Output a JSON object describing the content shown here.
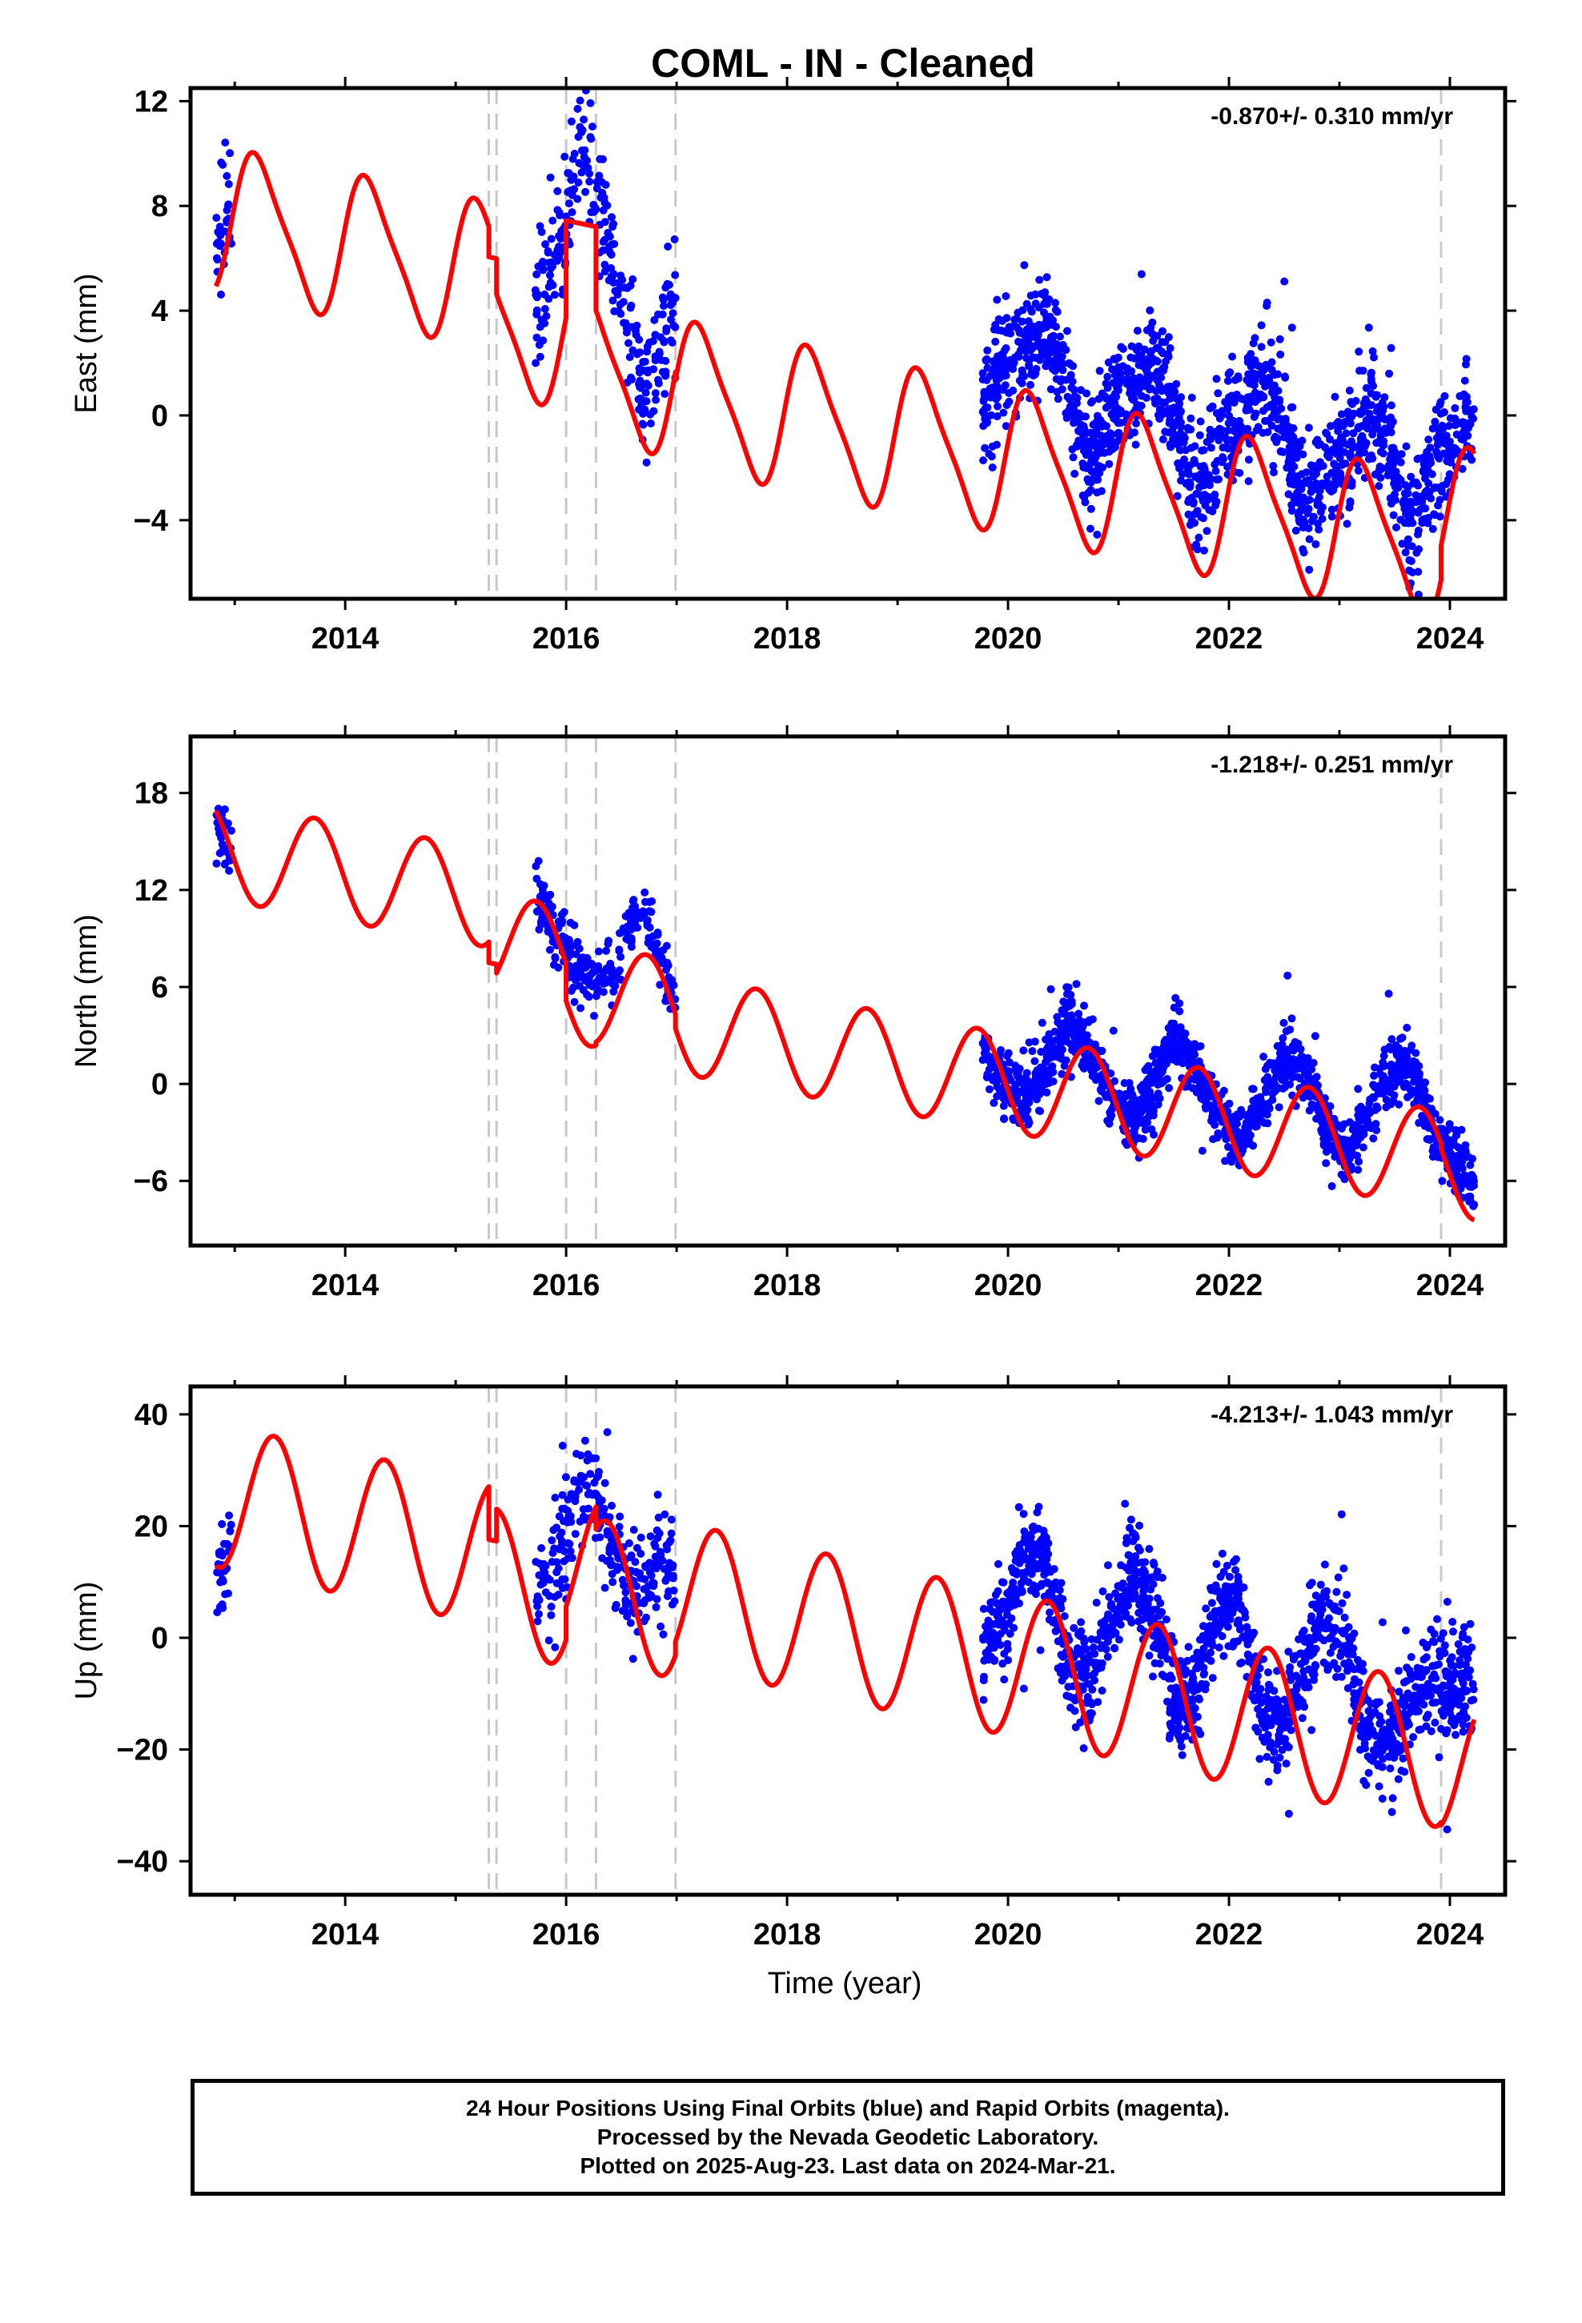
{
  "title": "COML  - IN - Cleaned",
  "xlabel": "Time (year)",
  "x_ticks": [
    "2014",
    "2016",
    "2018",
    "2020",
    "2022",
    "2024"
  ],
  "colors": {
    "data": "#0000ff",
    "model": "#ff0000",
    "breaks": "#c8c8c8",
    "frame": "#000000"
  },
  "footer": {
    "line1": "24 Hour Positions Using Final Orbits (blue) and Rapid Orbits (magenta).",
    "line2": "Processed by the Nevada Geodetic Laboratory.",
    "line3": "Plotted on 2025-Aug-23. Last data on 2024-Mar-21."
  },
  "chart_data": [
    {
      "type": "scatter",
      "component": "east",
      "ylabel": "East (mm)",
      "rate_label": "-0.870+/- 0.310 mm/yr",
      "xlim": [
        2012.6,
        2024.5
      ],
      "ylim": [
        -7,
        12.5
      ],
      "yticks": [
        -4,
        0,
        4,
        8,
        12
      ],
      "ytick_labels": [
        "−4",
        "0",
        "4",
        "8",
        "12"
      ],
      "break_lines": [
        2015.3,
        2015.37,
        2016.0,
        2016.27,
        2016.99,
        2023.92
      ],
      "data_segments": [
        {
          "start": 2012.83,
          "end": 2012.97,
          "values": [
            6.3,
            7.5,
            8.3
          ]
        },
        {
          "start": 2015.72,
          "end": 2016.99,
          "values": [
            3.5,
            5.5,
            7.5,
            10.0,
            9.0,
            5.5,
            3.5,
            1.0,
            2.0,
            4.5
          ]
        },
        {
          "start": 2019.77,
          "end": 2024.22,
          "values": [
            0.5,
            2.0,
            2.5,
            3.5,
            1.0,
            -2.0,
            0.0,
            1.0,
            2.0,
            0.0,
            -3.0,
            -1.0,
            0.0,
            1.5,
            0.5,
            -3.5,
            -2.0,
            -1.5,
            0.0,
            -1.0,
            -4.5,
            -2.0,
            -1.0,
            -0.5
          ]
        }
      ],
      "scatter_sigma": 1.1,
      "model": {
        "segments": [
          {
            "x0": 2012.83,
            "x1": 2015.3,
            "intercept": 7.5,
            "slope": -0.87,
            "annual_c": 0.5,
            "annual_s": 2.6,
            "semi_c": 0.2,
            "semi_s": 0.5
          },
          {
            "x0": 2015.3,
            "x1": 2015.37,
            "intercept": 8.2,
            "slope": -0.87,
            "annual_c": 0.0,
            "annual_s": 0.0,
            "semi_c": 0.0,
            "semi_s": 0.0
          },
          {
            "x0": 2015.37,
            "x1": 2016.0,
            "intercept": 5.8,
            "slope": -0.87,
            "annual_c": 0.5,
            "annual_s": 2.6,
            "semi_c": 0.2,
            "semi_s": 0.5
          },
          {
            "x0": 2016.0,
            "x1": 2016.27,
            "intercept": 10.2,
            "slope": -0.87,
            "annual_c": 0.0,
            "annual_s": 0.0,
            "semi_c": 0.0,
            "semi_s": 0.0
          },
          {
            "x0": 2016.27,
            "x1": 2016.99,
            "intercept": 4.8,
            "slope": -0.87,
            "annual_c": 0.5,
            "annual_s": 2.6,
            "semi_c": 0.2,
            "semi_s": 0.5
          },
          {
            "x0": 2016.99,
            "x1": 2023.92,
            "intercept": 4.5,
            "slope": -0.87,
            "annual_c": 0.5,
            "annual_s": 2.6,
            "semi_c": 0.2,
            "semi_s": 0.5
          },
          {
            "x0": 2023.92,
            "x1": 2024.22,
            "intercept": 5.8,
            "slope": -0.87,
            "annual_c": 0.5,
            "annual_s": 2.6,
            "semi_c": 0.2,
            "semi_s": 0.5
          }
        ]
      }
    },
    {
      "type": "scatter",
      "component": "north",
      "ylabel": "North (mm)",
      "rate_label": "-1.218+/- 0.251 mm/yr",
      "xlim": [
        2012.6,
        2024.5
      ],
      "ylim": [
        -10,
        21.5
      ],
      "yticks": [
        -6,
        0,
        6,
        12,
        18
      ],
      "ytick_labels": [
        "−6",
        "0",
        "6",
        "12",
        "18"
      ],
      "break_lines": [
        2015.3,
        2015.37,
        2016.0,
        2016.27,
        2016.99,
        2023.92
      ],
      "data_segments": [
        {
          "start": 2012.83,
          "end": 2012.97,
          "values": [
            16.5,
            15.5,
            14.5
          ]
        },
        {
          "start": 2015.72,
          "end": 2016.99,
          "values": [
            12.0,
            10.0,
            8.0,
            7.0,
            6.5,
            7.0,
            9.5,
            11.0,
            8.0,
            5.0
          ]
        },
        {
          "start": 2019.77,
          "end": 2024.22,
          "values": [
            2.0,
            0.0,
            -1.0,
            1.0,
            4.0,
            2.0,
            -1.0,
            -2.5,
            0.0,
            3.0,
            1.0,
            -2.0,
            -3.5,
            -1.5,
            1.5,
            1.0,
            -2.5,
            -4.5,
            -2.0,
            0.5,
            1.0,
            -2.5,
            -4.5,
            -6.0
          ]
        }
      ],
      "scatter_sigma": 0.95,
      "model": {
        "segments": [
          {
            "x0": 2012.83,
            "x1": 2015.3,
            "intercept": 14.5,
            "slope": -1.218,
            "annual_c": -0.5,
            "annual_s": -3.0,
            "semi_c": 0.0,
            "semi_s": 0.0
          },
          {
            "x0": 2015.3,
            "x1": 2015.37,
            "intercept": 10.5,
            "slope": -1.218,
            "annual_c": 0.0,
            "annual_s": 0.0,
            "semi_c": 0.0,
            "semi_s": 0.0
          },
          {
            "x0": 2015.37,
            "x1": 2016.0,
            "intercept": 11.8,
            "slope": -1.218,
            "annual_c": -0.5,
            "annual_s": -3.0,
            "semi_c": 0.0,
            "semi_s": 0.0
          },
          {
            "x0": 2016.0,
            "x1": 2016.27,
            "intercept": 9.5,
            "slope": -1.218,
            "annual_c": -0.5,
            "annual_s": -3.0,
            "semi_c": 0.0,
            "semi_s": 0.0
          },
          {
            "x0": 2016.27,
            "x1": 2016.99,
            "intercept": 9.7,
            "slope": -1.218,
            "annual_c": -0.5,
            "annual_s": -3.0,
            "semi_c": 0.0,
            "semi_s": 0.0
          },
          {
            "x0": 2016.99,
            "x1": 2023.92,
            "intercept": 8.8,
            "slope": -1.218,
            "annual_c": -0.5,
            "annual_s": -3.0,
            "semi_c": 0.0,
            "semi_s": 0.0
          },
          {
            "x0": 2023.92,
            "x1": 2024.22,
            "intercept": 8.5,
            "slope": -1.218,
            "annual_c": -0.5,
            "annual_s": -3.0,
            "semi_c": 0.0,
            "semi_s": 0.0
          }
        ]
      }
    },
    {
      "type": "scatter",
      "component": "up",
      "ylabel": "Up (mm)",
      "rate_label": "-4.213+/- 1.043 mm/yr",
      "xlim": [
        2012.6,
        2024.5
      ],
      "ylim": [
        -46,
        45
      ],
      "yticks": [
        -40,
        -20,
        0,
        20,
        40
      ],
      "ytick_labels": [
        "−40",
        "−20",
        "0",
        "20",
        "40"
      ],
      "break_lines": [
        2015.3,
        2015.37,
        2016.0,
        2016.27,
        2016.99,
        2023.92
      ],
      "data_segments": [
        {
          "start": 2012.83,
          "end": 2012.97,
          "values": [
            11.0,
            13.0,
            17.0
          ]
        },
        {
          "start": 2015.72,
          "end": 2016.99,
          "values": [
            10.0,
            12.0,
            20.0,
            28.0,
            25.0,
            15.0,
            8.0,
            10.0,
            15.0,
            12.0
          ]
        },
        {
          "start": 2019.77,
          "end": 2024.22,
          "values": [
            -3.0,
            5.0,
            15.0,
            12.0,
            -5.0,
            -8.0,
            2.0,
            12.0,
            5.0,
            -12.0,
            -10.0,
            5.0,
            8.0,
            -12.0,
            -17.0,
            -5.0,
            5.0,
            0.0,
            -18.0,
            -20.0,
            -12.0,
            -6.0,
            -10.0,
            -8.0
          ]
        }
      ],
      "scatter_sigma": 4.5,
      "model": {
        "segments": [
          {
            "x0": 2012.83,
            "x1": 2015.3,
            "intercept": 25.5,
            "slope": -4.213,
            "annual_c": -8.0,
            "annual_s": 10.0,
            "semi_c": 0.0,
            "semi_s": 0.0
          },
          {
            "x0": 2015.3,
            "x1": 2015.37,
            "intercept": 28.0,
            "slope": -4.213,
            "annual_c": 0.0,
            "annual_s": 0.0,
            "semi_c": 0.0,
            "semi_s": 0.0
          },
          {
            "x0": 2015.37,
            "x1": 2016.0,
            "intercept": 21.0,
            "slope": -4.213,
            "annual_c": -8.0,
            "annual_s": 10.0,
            "semi_c": 0.0,
            "semi_s": 0.0
          },
          {
            "x0": 2016.0,
            "x1": 2016.27,
            "intercept": 27.0,
            "slope": -4.213,
            "annual_c": -8.0,
            "annual_s": 10.0,
            "semi_c": 0.0,
            "semi_s": 0.0
          },
          {
            "x0": 2016.27,
            "x1": 2016.99,
            "intercept": 23.0,
            "slope": -4.213,
            "annual_c": -8.0,
            "annual_s": 10.0,
            "semi_c": 0.0,
            "semi_s": 0.0
          },
          {
            "x0": 2016.99,
            "x1": 2023.92,
            "intercept": 25.5,
            "slope": -4.213,
            "annual_c": -8.0,
            "annual_s": 10.0,
            "semi_c": 0.0,
            "semi_s": 0.0
          },
          {
            "x0": 2023.92,
            "x1": 2024.22,
            "intercept": 25.0,
            "slope": -4.213,
            "annual_c": -8.0,
            "annual_s": 10.0,
            "semi_c": 0.0,
            "semi_s": 0.0
          }
        ]
      }
    }
  ]
}
